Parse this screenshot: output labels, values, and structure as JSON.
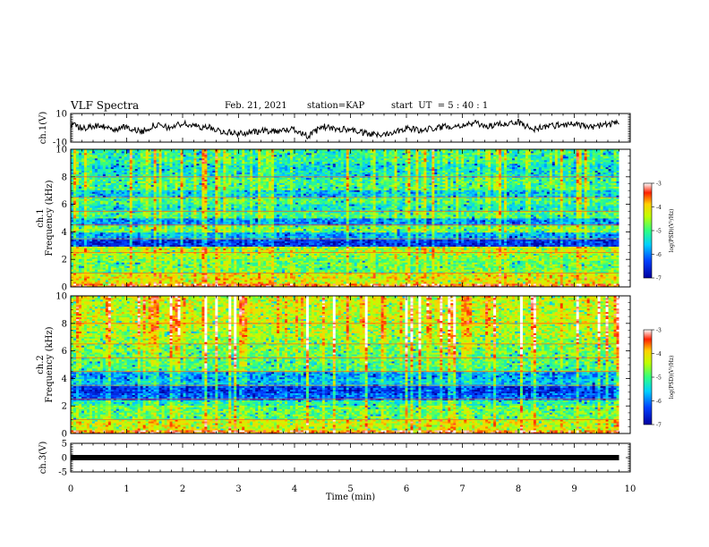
{
  "header": {
    "title": "VLF Spectra",
    "date": "Feb. 21, 2021",
    "station_label": "station=",
    "station": "KAP",
    "start_label": "start  UT  =",
    "start_time": "5 : 40 : 1"
  },
  "chart_data": [
    {
      "type": "line",
      "panel": "ch1-voltage",
      "ylabel": "ch.1(V)",
      "ylim": [
        -10,
        10
      ],
      "y_ticks": [
        "10",
        "-10"
      ],
      "xlim": [
        0,
        10
      ],
      "data_extent_min": [
        0,
        9.8
      ],
      "x": [
        0,
        0.25,
        0.5,
        0.75,
        1.0,
        1.25,
        1.5,
        1.75,
        2.0,
        2.25,
        2.5,
        2.75,
        3.0,
        3.25,
        3.5,
        3.75,
        4.0,
        4.25,
        4.5,
        4.75,
        5.0,
        5.25,
        5.5,
        5.75,
        6.0,
        6.25,
        6.5,
        6.75,
        7.0,
        7.25,
        7.5,
        7.75,
        8.0,
        8.25,
        8.5,
        8.75,
        9.0,
        9.25,
        9.5,
        9.75,
        9.8
      ],
      "y": [
        2,
        0,
        2,
        -2,
        1,
        -3,
        2,
        0,
        3,
        1,
        0,
        -3,
        -4,
        -3,
        -2,
        -2,
        -1,
        -6,
        1,
        -1,
        -1,
        -4,
        -5,
        -3,
        0,
        -2,
        0,
        1,
        2,
        3,
        1,
        3,
        4,
        -1,
        1,
        2,
        3,
        0,
        2,
        3,
        2
      ],
      "color": "#000000"
    },
    {
      "type": "heatmap",
      "panel": "ch1-spectrogram",
      "ylabel": "ch.1\nFrequency  (kHz)",
      "ylim": [
        0,
        10
      ],
      "y_ticks": [
        "0",
        "2",
        "4",
        "6",
        "8",
        "10"
      ],
      "xlim": [
        0,
        10
      ],
      "data_extent_min": [
        0,
        9.8
      ],
      "colorbar": {
        "label": "log(PSD)(V²/Hz)",
        "range": [
          -7,
          -3
        ],
        "ticks": [
          "-3",
          "-4",
          "-5",
          "-6",
          "-7"
        ]
      },
      "frequency_bands_khz": [
        0.3,
        1.0,
        2.0,
        2.5,
        3.0,
        3.5,
        4.0,
        4.5,
        5.0,
        5.5,
        6.0,
        6.5,
        7.0,
        8.0,
        9.0,
        10.0
      ],
      "band_log_psd": [
        -4.2,
        -4.8,
        -4.6,
        -4.4,
        -6.5,
        -5.8,
        -4.8,
        -5.9,
        -5.0,
        -5.3,
        -5.0,
        -5.6,
        -5.0,
        -5.4,
        -5.1
      ]
    },
    {
      "type": "heatmap",
      "panel": "ch2-spectrogram",
      "ylabel": "ch.2\nFrequency  (kHz)",
      "ylim": [
        0,
        10
      ],
      "y_ticks": [
        "0",
        "2",
        "4",
        "6",
        "8",
        "10"
      ],
      "xlim": [
        0,
        10
      ],
      "data_extent_min": [
        0,
        9.8
      ],
      "colorbar": {
        "label": "log(PSD)(V²/Hz)",
        "range": [
          -7,
          -3
        ],
        "ticks": [
          "-3",
          "-4",
          "-5",
          "-6",
          "-7"
        ]
      },
      "frequency_bands_khz": [
        0.3,
        1.0,
        2.0,
        2.5,
        3.0,
        3.5,
        4.0,
        4.5,
        5.0,
        5.5,
        6.0,
        6.5,
        7.0,
        8.0,
        9.0,
        10.0
      ],
      "band_log_psd": [
        -4.3,
        -4.8,
        -5.2,
        -6.2,
        -6.4,
        -5.6,
        -5.8,
        -5.0,
        -4.9,
        -4.8,
        -4.7,
        -4.6,
        -4.4,
        -4.3,
        -4.3
      ]
    },
    {
      "type": "line",
      "panel": "ch3-voltage",
      "ylabel": "ch.3(V)",
      "ylim": [
        -5,
        5
      ],
      "y_ticks": [
        "5",
        "0",
        "-5"
      ],
      "xlim": [
        0,
        10
      ],
      "data_extent_min": [
        0,
        9.8
      ],
      "x": [
        0,
        9.8
      ],
      "y": [
        0,
        0
      ],
      "color": "#000000"
    }
  ],
  "x_axis": {
    "label": "Time  (min)",
    "ticks": [
      "0",
      "1",
      "2",
      "3",
      "4",
      "5",
      "6",
      "7",
      "8",
      "9",
      "10"
    ]
  }
}
